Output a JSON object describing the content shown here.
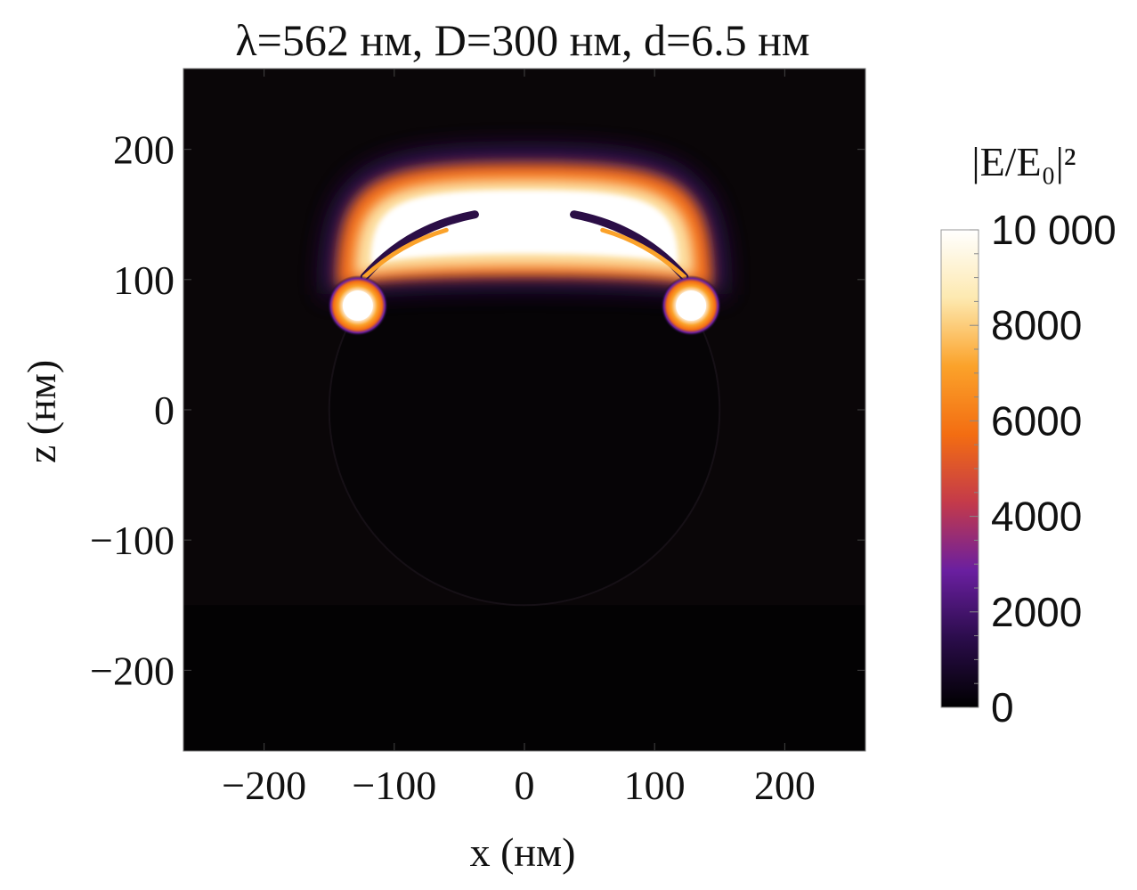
{
  "chart_data": {
    "type": "heatmap",
    "title": "λ=562 нм, D=300 нм, d=6.5 нм",
    "xlabel": "x (нм)",
    "ylabel": "z (нм)",
    "xlim": [
      -262,
      262
    ],
    "ylim": [
      -262,
      262
    ],
    "xticks": [
      -200,
      -100,
      0,
      100,
      200
    ],
    "yticks": [
      200,
      100,
      0,
      -100,
      -200
    ],
    "xtick_labels": [
      "−200",
      "−100",
      "0",
      "100",
      "200"
    ],
    "ytick_labels": [
      "200",
      "100",
      "0",
      "−100",
      "−200"
    ],
    "colorbar": {
      "title": "|E/E₀|²",
      "range": [
        0,
        10000
      ],
      "ticks": [
        10000,
        8000,
        6000,
        4000,
        2000,
        0
      ],
      "tick_labels": [
        "10 000",
        "8000",
        "6000",
        "4000",
        "2000",
        "0"
      ],
      "colormap": [
        "#000000",
        "#2a0c4a",
        "#6a1fa0",
        "#c43a4a",
        "#f36d12",
        "#fba22a",
        "#fde9b0",
        "#ffffff"
      ]
    },
    "features": {
      "substrate_top_z": -150,
      "particle_center": [
        0,
        0
      ],
      "particle_radius": 150,
      "hot_band_z": [
        100,
        185
      ],
      "edge_hotspots": [
        [
          -128,
          80
        ],
        [
          128,
          80
        ]
      ]
    }
  }
}
